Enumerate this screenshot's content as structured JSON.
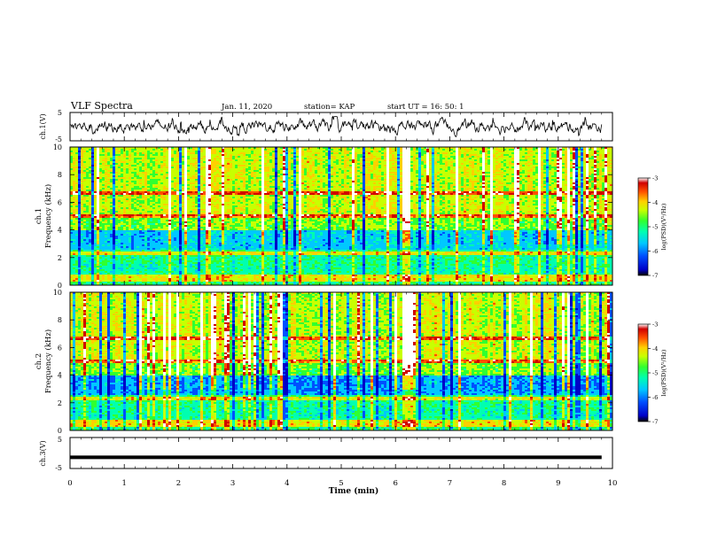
{
  "header": {
    "title": "VLF Spectra",
    "date": "Jan. 11, 2020",
    "station": "station= KAP",
    "start": "start  UT =   16: 50: 1"
  },
  "chart_data": [
    {
      "type": "line",
      "panel": "ch1-waveform",
      "ylabel": "ch.1(V)",
      "ylim": [
        -5,
        5
      ],
      "yticks": [
        "5",
        "-5"
      ],
      "xlim": [
        0,
        10
      ],
      "series": [
        {
          "color": "#000000",
          "note_values": "noisy amplitude fluctuating roughly between -3 and 3 V"
        }
      ]
    },
    {
      "type": "heatmap",
      "panel": "ch1-spectrogram",
      "ylabel": "ch.1\nFrequency (kHz)",
      "ylim": [
        0,
        10
      ],
      "yticks": [
        "0",
        "2",
        "4",
        "6",
        "8",
        "10"
      ],
      "xlim": [
        0,
        10
      ],
      "colorbar": {
        "label": "log(PSD)(V²/Hz)",
        "range": [
          -7,
          -3
        ],
        "ticks": [
          "-3",
          "-4",
          "-5",
          "-6",
          "-7"
        ]
      }
    },
    {
      "type": "heatmap",
      "panel": "ch2-spectrogram",
      "ylabel": "ch.2\nFrequency (kHz)",
      "ylim": [
        0,
        10
      ],
      "yticks": [
        "0",
        "2",
        "4",
        "6",
        "8",
        "10"
      ],
      "xlim": [
        0,
        10
      ],
      "colorbar": {
        "label": "log(PSD)(V²/Hz)",
        "range": [
          -7,
          -3
        ],
        "ticks": [
          "-3",
          "-4",
          "-5",
          "-6",
          "-7"
        ]
      }
    },
    {
      "type": "line",
      "panel": "ch3-waveform",
      "ylabel": "ch.3(V)",
      "ylim": [
        -5,
        5
      ],
      "yticks": [
        "5",
        "-5"
      ],
      "xlim": [
        0,
        10
      ],
      "series": [
        {
          "color": "#000000",
          "y": -1.4
        }
      ]
    }
  ],
  "xaxis": {
    "label": "Time (min)",
    "ticks": [
      "0",
      "1",
      "2",
      "3",
      "4",
      "5",
      "6",
      "7",
      "8",
      "9",
      "10"
    ]
  },
  "colors": {
    "cmap": [
      "#000000",
      "#0000c8",
      "#0050ff",
      "#00c8ff",
      "#00ffb0",
      "#30ff30",
      "#c8ff00",
      "#ffd000",
      "#ff5000",
      "#d00000",
      "#ffffff"
    ]
  }
}
